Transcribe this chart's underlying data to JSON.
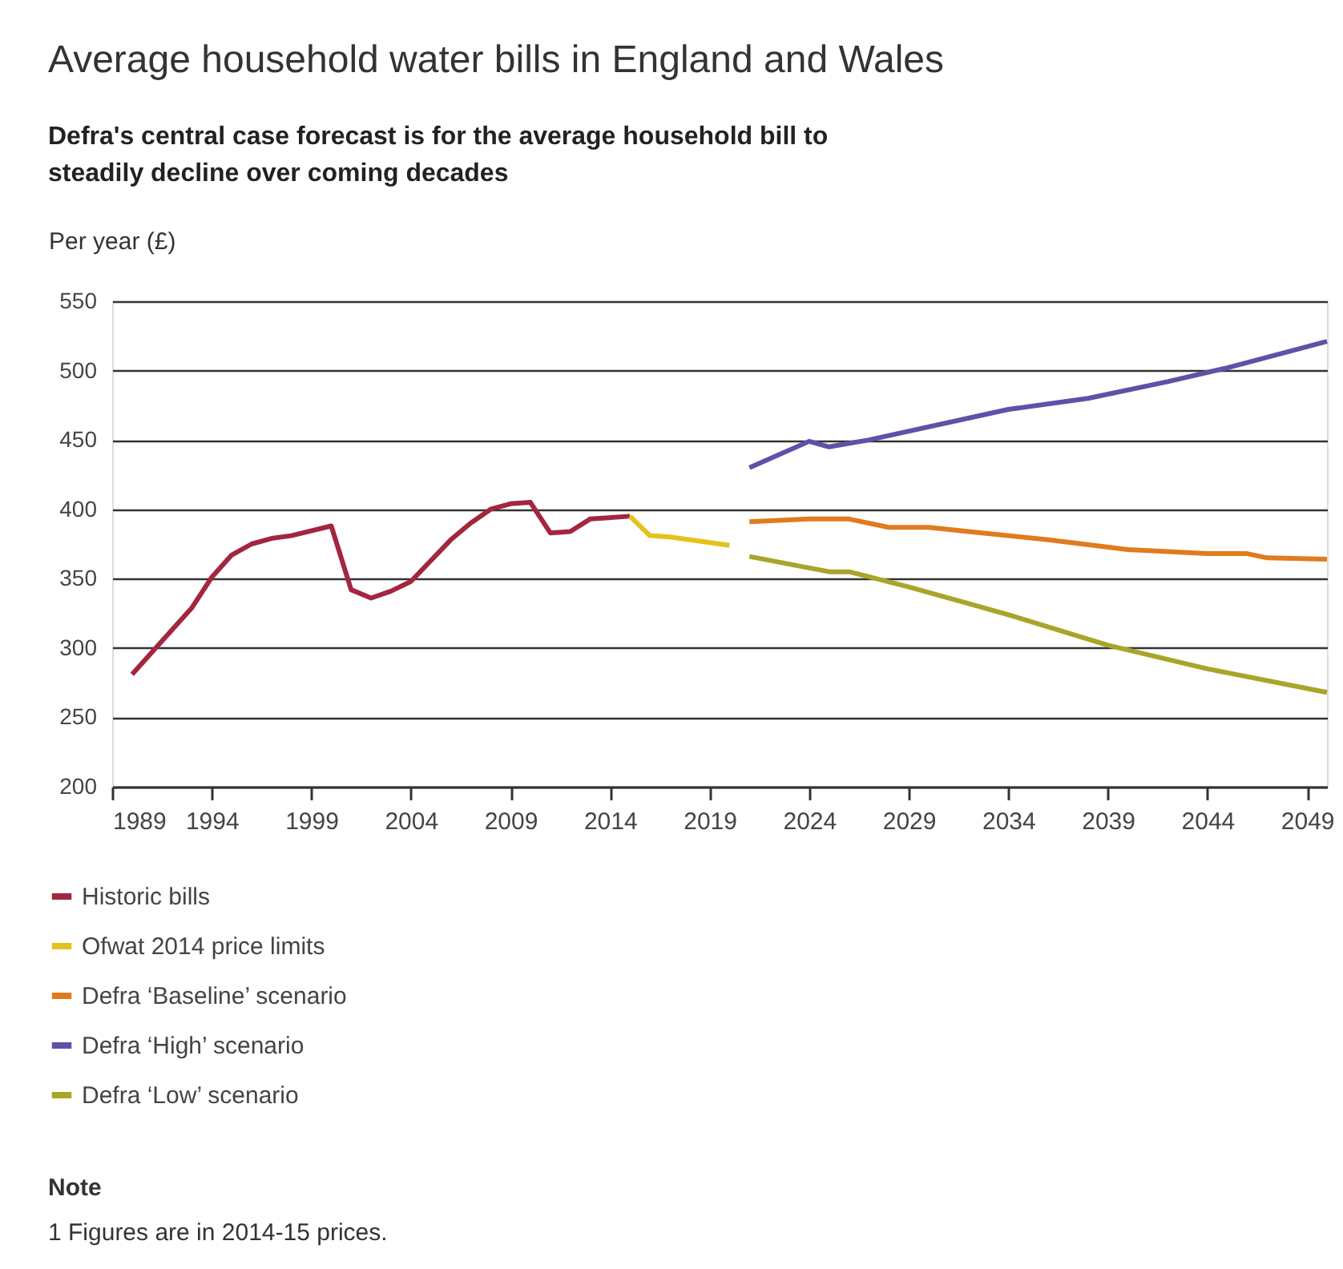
{
  "chart_data": {
    "type": "line",
    "title": "Average household water bills in England and Wales",
    "subtitle": "Defra's central case forecast is for the average household bill to steadily decline over coming decades",
    "ylabel": "Per year (£)",
    "xlim": [
      1989,
      2050
    ],
    "xticks": [
      1989,
      1994,
      1999,
      2004,
      2009,
      2014,
      2019,
      2024,
      2029,
      2034,
      2039,
      2044,
      2049
    ],
    "ylim": [
      200,
      550
    ],
    "yticks": [
      200,
      250,
      300,
      350,
      400,
      450,
      500,
      550
    ],
    "grid": "y",
    "legend": "bottom",
    "marker": "none",
    "line_style": "solid",
    "series": [
      {
        "name": "Historic bills",
        "color": "#a3263f",
        "x": [
          1990,
          1991,
          1993,
          1994,
          1995,
          1996,
          1997,
          1998,
          2000,
          2001,
          2002,
          2003,
          2004,
          2006,
          2007,
          2008,
          2009,
          2010,
          2011,
          2012,
          2013,
          2015
        ],
        "values": [
          281,
          297,
          329,
          351,
          367,
          375,
          379,
          381,
          388,
          342,
          336,
          341,
          348,
          378,
          390,
          400,
          404,
          405,
          383,
          384,
          393,
          395
        ]
      },
      {
        "name": "Ofwat 2014 price limits",
        "color": "#e3c21b",
        "x": [
          2015,
          2016,
          2017,
          2020
        ],
        "values": [
          395,
          381,
          380,
          374
        ]
      },
      {
        "name": "Defra ‘Baseline’ scenario",
        "color": "#e07b1f",
        "x": [
          2021,
          2024,
          2026,
          2028,
          2030,
          2032,
          2036,
          2040,
          2044,
          2046,
          2047,
          2050
        ],
        "values": [
          391,
          393,
          393,
          387,
          387,
          384,
          378,
          371,
          368,
          368,
          365,
          364
        ]
      },
      {
        "name": "Defra ‘High’ scenario",
        "color": "#5b53a8",
        "x": [
          2021,
          2024,
          2025,
          2027,
          2034,
          2038,
          2042,
          2045,
          2050
        ],
        "values": [
          430,
          449,
          445,
          450,
          472,
          480,
          492,
          502,
          521
        ]
      },
      {
        "name": "Defra ‘Low’ scenario",
        "color": "#a8a52a",
        "x": [
          2021,
          2025,
          2026,
          2029,
          2032,
          2034,
          2039,
          2044,
          2050
        ],
        "values": [
          366,
          355,
          355,
          344,
          332,
          324,
          302,
          285,
          268
        ]
      }
    ],
    "annotations": [
      "Note",
      "1  Figures are in 2014-15 prices."
    ]
  }
}
